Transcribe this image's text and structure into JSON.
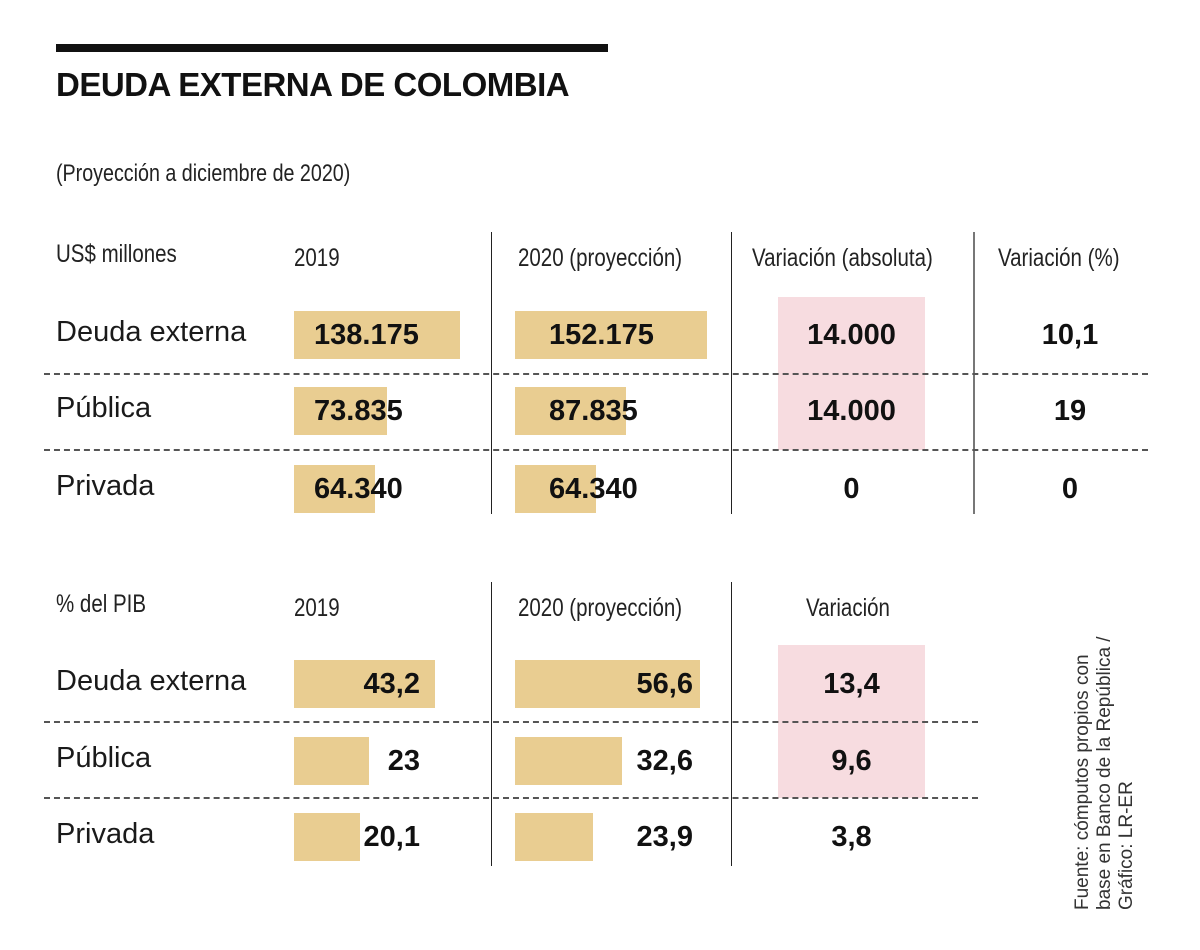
{
  "header": {
    "title": "DEUDA EXTERNA DE COLOMBIA",
    "subtitle": "(Proyección a diciembre de 2020)"
  },
  "source": {
    "line1": "Fuente: cómputos propios con",
    "line2": "base en Banco de la República /",
    "line3": "Gráfico: LR-ER"
  },
  "colors": {
    "bar": "#e9cd91",
    "highlight": "#f7dce0",
    "text": "#111111"
  },
  "chart_data": [
    {
      "type": "table",
      "title": "US$ millones",
      "columns": [
        "2019",
        "2020 (proyección)",
        "Variación (absoluta)",
        "Variación (%)"
      ],
      "rows": [
        {
          "label": "Deuda externa",
          "v2019": 138175,
          "v2020": 152175,
          "var_abs": 14000,
          "var_pct": 10.1,
          "display": {
            "v2019": "138.175",
            "v2020": "152.175",
            "var_abs": "14.000",
            "var_pct": "10,1"
          }
        },
        {
          "label": "Pública",
          "v2019": 73835,
          "v2020": 87835,
          "var_abs": 14000,
          "var_pct": 19,
          "display": {
            "v2019": "73.835",
            "v2020": "87.835",
            "var_abs": "14.000",
            "var_pct": "19"
          }
        },
        {
          "label": "Privada",
          "v2019": 64340,
          "v2020": 64340,
          "var_abs": 0,
          "var_pct": 0,
          "display": {
            "v2019": "64.340",
            "v2020": "64.340",
            "var_abs": "0",
            "var_pct": "0"
          }
        }
      ],
      "highlighted_cells": [
        "Deuda externa.var_abs",
        "Pública.var_abs"
      ]
    },
    {
      "type": "table",
      "title": "% del PIB",
      "columns": [
        "2019",
        "2020 (proyección)",
        "Variación"
      ],
      "rows": [
        {
          "label": "Deuda externa",
          "v2019": 43.2,
          "v2020": 56.6,
          "var": 13.4,
          "display": {
            "v2019": "43,2",
            "v2020": "56,6",
            "var": "13,4"
          }
        },
        {
          "label": "Pública",
          "v2019": 23,
          "v2020": 32.6,
          "var": 9.6,
          "display": {
            "v2019": "23",
            "v2020": "32,6",
            "var": "9,6"
          }
        },
        {
          "label": "Privada",
          "v2019": 20.1,
          "v2020": 23.9,
          "var": 3.8,
          "display": {
            "v2019": "20,1",
            "v2020": "23,9",
            "var": "3,8"
          }
        }
      ],
      "highlighted_cells": [
        "Deuda externa.var",
        "Pública.var"
      ]
    }
  ]
}
